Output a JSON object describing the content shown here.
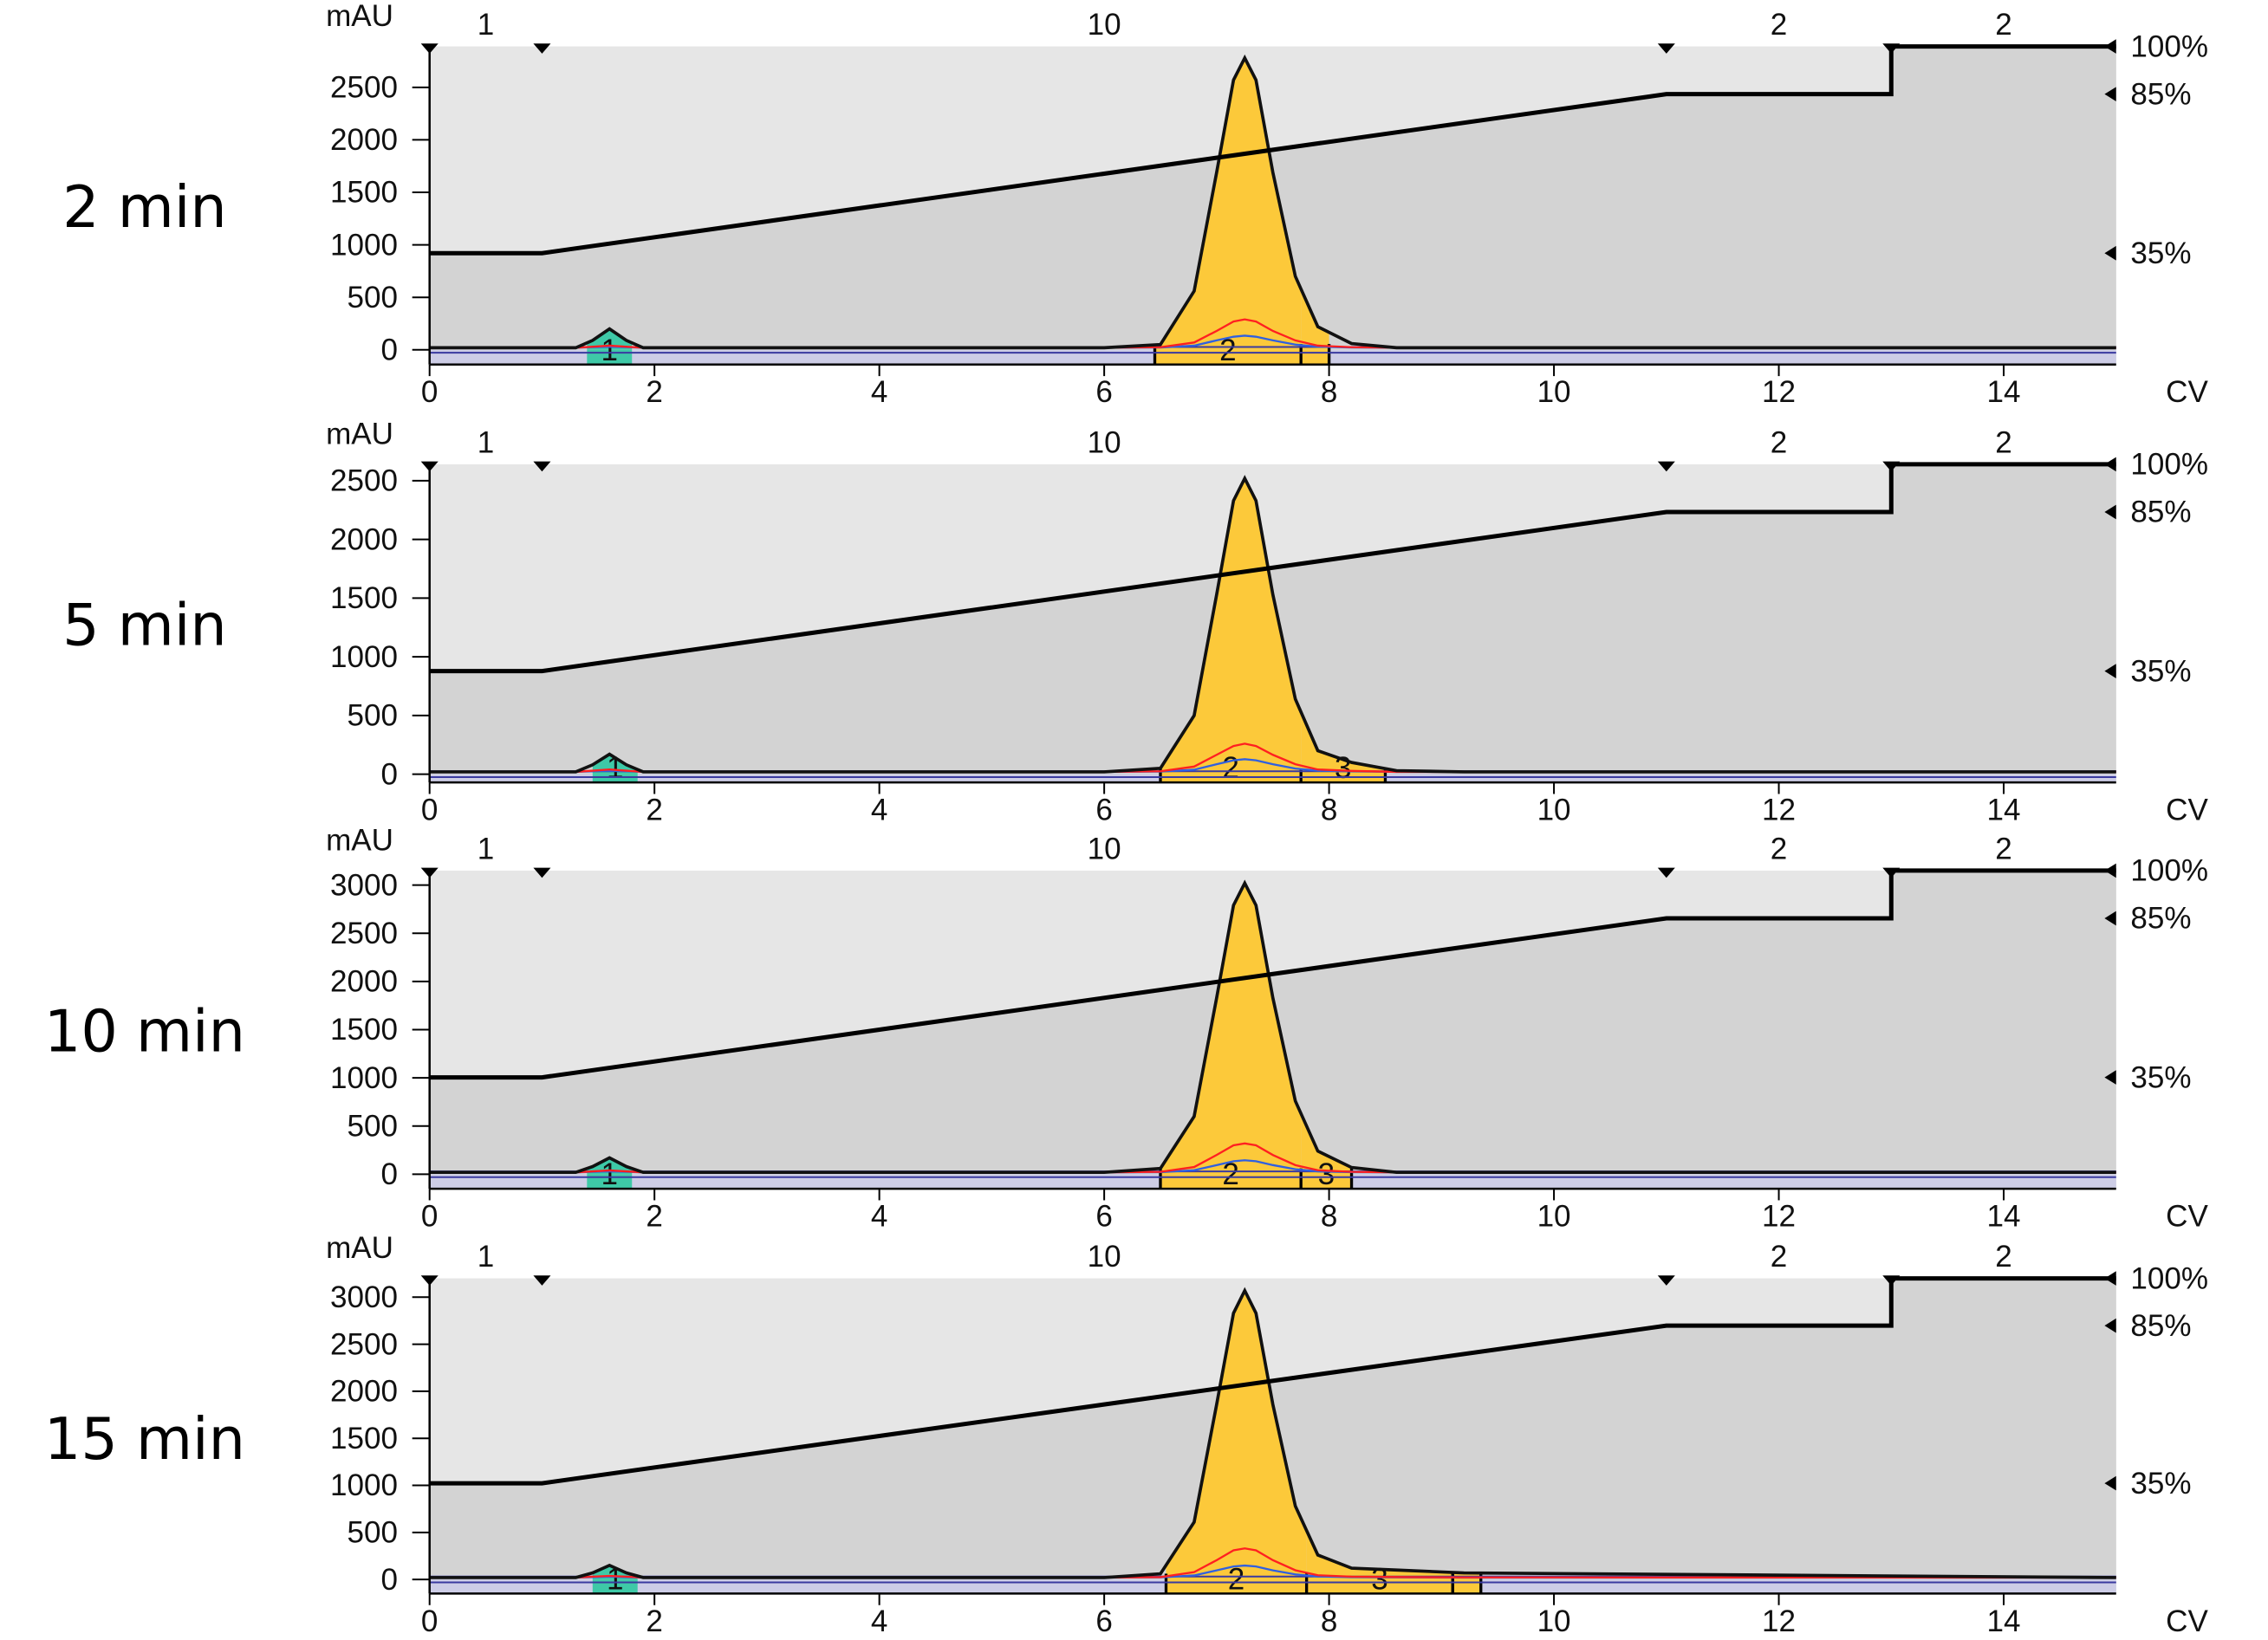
{
  "chart_data": [
    {
      "type": "line",
      "title": "2 min",
      "y_label": "mAU",
      "x_label": "CV",
      "xlim": [
        0,
        15
      ],
      "xticks": [
        0,
        2,
        4,
        6,
        8,
        10,
        12,
        14
      ],
      "ylim": [
        -140,
        2890
      ],
      "yticks": [
        0,
        500,
        1000,
        1500,
        2000,
        2500
      ],
      "y2lim": [
        0,
        100
      ],
      "y2ticks": [
        {
          "value": 35,
          "label": "35%"
        },
        {
          "value": 85,
          "label": "85%"
        },
        {
          "value": 100,
          "label": "100%"
        }
      ],
      "segments": [
        1,
        10,
        2,
        2
      ],
      "x": [
        0,
        1.3,
        1.45,
        1.6,
        1.75,
        1.9,
        6.0,
        6.5,
        6.8,
        7.0,
        7.15,
        7.25,
        7.35,
        7.5,
        7.7,
        7.9,
        8.2,
        8.6,
        9.2,
        15
      ],
      "series": [
        {
          "color": "#111111",
          "values": [
            20,
            20,
            90,
            200,
            90,
            20,
            20,
            50,
            560,
            1690,
            2570,
            2780,
            2570,
            1690,
            700,
            220,
            60,
            20,
            20,
            20
          ]
        },
        {
          "color": "#ff2020",
          "values": [
            20,
            20,
            30,
            40,
            30,
            20,
            20,
            25,
            70,
            180,
            270,
            290,
            270,
            180,
            90,
            40,
            25,
            20,
            20,
            20
          ]
        },
        {
          "color": "#3060e0",
          "values": [
            20,
            20,
            25,
            30,
            25,
            20,
            20,
            22,
            40,
            90,
            125,
            135,
            125,
            90,
            50,
            30,
            22,
            20,
            20,
            20
          ]
        }
      ],
      "gradient": {
        "axis": "y2",
        "color": "#000000",
        "x": [
          0,
          1,
          11,
          13,
          13,
          15
        ],
        "values": [
          35,
          35,
          85,
          85,
          100,
          100
        ]
      },
      "fractions": [
        {
          "label": "1",
          "color": "#3ec9a7",
          "x": [
            1.4,
            1.8
          ]
        },
        {
          "label": "2",
          "color": "#fcc93a",
          "x": [
            6.45,
            7.75
          ]
        },
        {
          "label": null,
          "color": "#fcc93a",
          "x": [
            7.75,
            8.0
          ]
        }
      ]
    },
    {
      "type": "line",
      "title": "5 min",
      "y_label": "mAU",
      "x_label": "CV",
      "xlim": [
        0,
        15
      ],
      "xticks": [
        0,
        2,
        4,
        6,
        8,
        10,
        12,
        14
      ],
      "ylim": [
        -70,
        2640
      ],
      "yticks": [
        0,
        500,
        1000,
        1500,
        2000,
        2500
      ],
      "y2lim": [
        0,
        100
      ],
      "y2ticks": [
        {
          "value": 35,
          "label": "35%"
        },
        {
          "value": 85,
          "label": "85%"
        },
        {
          "value": 100,
          "label": "100%"
        }
      ],
      "segments": [
        1,
        10,
        2,
        2
      ],
      "x": [
        0,
        1.3,
        1.45,
        1.6,
        1.75,
        1.9,
        6.0,
        6.5,
        6.8,
        7.0,
        7.15,
        7.25,
        7.35,
        7.5,
        7.7,
        7.9,
        8.2,
        8.6,
        9.2,
        15
      ],
      "series": [
        {
          "color": "#111111",
          "values": [
            20,
            20,
            80,
            170,
            80,
            20,
            20,
            50,
            500,
            1530,
            2330,
            2520,
            2330,
            1530,
            640,
            200,
            100,
            30,
            20,
            20
          ]
        },
        {
          "color": "#ff2020",
          "values": [
            20,
            20,
            30,
            40,
            30,
            20,
            20,
            25,
            65,
            165,
            240,
            260,
            240,
            165,
            85,
            40,
            28,
            20,
            20,
            20
          ]
        },
        {
          "color": "#3060e0",
          "values": [
            20,
            20,
            25,
            30,
            25,
            20,
            20,
            22,
            38,
            85,
            118,
            128,
            118,
            85,
            48,
            30,
            24,
            20,
            20,
            20
          ]
        }
      ],
      "gradient": {
        "axis": "y2",
        "color": "#000000",
        "x": [
          0,
          1,
          11,
          13,
          13,
          15
        ],
        "values": [
          35,
          35,
          85,
          85,
          100,
          100
        ]
      },
      "fractions": [
        {
          "label": "1",
          "color": "#3ec9a7",
          "x": [
            1.45,
            1.85
          ]
        },
        {
          "label": "2",
          "color": "#fcc93a",
          "x": [
            6.5,
            7.75
          ]
        },
        {
          "label": "3",
          "color": "#fcc93a",
          "x": [
            7.75,
            8.5
          ]
        }
      ]
    },
    {
      "type": "line",
      "title": "10 min",
      "y_label": "mAU",
      "x_label": "CV",
      "xlim": [
        0,
        15
      ],
      "xticks": [
        0,
        2,
        4,
        6,
        8,
        10,
        12,
        14
      ],
      "ylim": [
        -150,
        3150
      ],
      "yticks": [
        0,
        500,
        1000,
        1500,
        2000,
        2500,
        3000
      ],
      "y2lim": [
        0,
        100
      ],
      "y2ticks": [
        {
          "value": 35,
          "label": "35%"
        },
        {
          "value": 85,
          "label": "85%"
        },
        {
          "value": 100,
          "label": "100%"
        }
      ],
      "segments": [
        1,
        10,
        2,
        2
      ],
      "x": [
        0,
        1.3,
        1.45,
        1.6,
        1.75,
        1.9,
        6.0,
        6.5,
        6.8,
        7.0,
        7.15,
        7.25,
        7.35,
        7.5,
        7.7,
        7.9,
        8.2,
        8.6,
        9.2,
        15
      ],
      "series": [
        {
          "color": "#111111",
          "values": [
            20,
            20,
            80,
            170,
            80,
            20,
            20,
            60,
            600,
            1830,
            2790,
            3020,
            2790,
            1830,
            760,
            240,
            70,
            20,
            20,
            20
          ]
        },
        {
          "color": "#ff2020",
          "values": [
            20,
            20,
            30,
            40,
            30,
            20,
            20,
            25,
            75,
            200,
            300,
            320,
            300,
            200,
            95,
            42,
            25,
            20,
            20,
            20
          ]
        },
        {
          "color": "#3060e0",
          "values": [
            20,
            20,
            25,
            30,
            25,
            20,
            20,
            22,
            42,
            95,
            135,
            145,
            135,
            95,
            52,
            30,
            22,
            20,
            20,
            20
          ]
        }
      ],
      "gradient": {
        "axis": "y2",
        "color": "#000000",
        "x": [
          0,
          1,
          11,
          13,
          13,
          15
        ],
        "values": [
          35,
          35,
          85,
          85,
          100,
          100
        ]
      },
      "fractions": [
        {
          "label": "1",
          "color": "#3ec9a7",
          "x": [
            1.4,
            1.8
          ]
        },
        {
          "label": "2",
          "color": "#fcc93a",
          "x": [
            6.5,
            7.75
          ]
        },
        {
          "label": "3",
          "color": "#fcc93a",
          "x": [
            7.75,
            8.2
          ]
        }
      ]
    },
    {
      "type": "line",
      "title": "15 min",
      "y_label": "mAU",
      "x_label": "CV",
      "xlim": [
        0,
        15
      ],
      "xticks": [
        0,
        2,
        4,
        6,
        8,
        10,
        12,
        14
      ],
      "ylim": [
        -150,
        3200
      ],
      "yticks": [
        0,
        500,
        1000,
        1500,
        2000,
        2500,
        3000
      ],
      "y2lim": [
        0,
        100
      ],
      "y2ticks": [
        {
          "value": 35,
          "label": "35%"
        },
        {
          "value": 85,
          "label": "85%"
        },
        {
          "value": 100,
          "label": "100%"
        }
      ],
      "segments": [
        1,
        10,
        2,
        2
      ],
      "x": [
        0,
        1.3,
        1.45,
        1.6,
        1.75,
        1.9,
        6.0,
        6.5,
        6.8,
        7.0,
        7.15,
        7.25,
        7.35,
        7.5,
        7.7,
        7.9,
        8.2,
        8.6,
        9.2,
        15
      ],
      "series": [
        {
          "color": "#111111",
          "values": [
            20,
            20,
            70,
            150,
            70,
            20,
            20,
            60,
            610,
            1860,
            2830,
            3070,
            2830,
            1860,
            780,
            260,
            120,
            100,
            70,
            20
          ]
        },
        {
          "color": "#ff2020",
          "values": [
            20,
            20,
            30,
            38,
            30,
            20,
            20,
            25,
            78,
            205,
            310,
            330,
            310,
            205,
            98,
            45,
            30,
            26,
            22,
            20
          ]
        },
        {
          "color": "#3060e0",
          "values": [
            20,
            20,
            25,
            30,
            25,
            20,
            20,
            22,
            43,
            97,
            138,
            148,
            138,
            97,
            54,
            32,
            25,
            22,
            20,
            20
          ]
        }
      ],
      "gradient": {
        "axis": "y2",
        "color": "#000000",
        "x": [
          0,
          1,
          11,
          13,
          13,
          15
        ],
        "values": [
          35,
          35,
          85,
          85,
          100,
          100
        ]
      },
      "fractions": [
        {
          "label": "1",
          "color": "#3ec9a7",
          "x": [
            1.45,
            1.85
          ]
        },
        {
          "label": "2",
          "color": "#fcc93a",
          "x": [
            6.55,
            7.8
          ]
        },
        {
          "label": "3",
          "color": "#fcc93a",
          "x": [
            7.8,
            9.1
          ]
        },
        {
          "label": null,
          "color": "#fcc93a",
          "x": [
            9.1,
            9.35
          ]
        }
      ]
    }
  ]
}
